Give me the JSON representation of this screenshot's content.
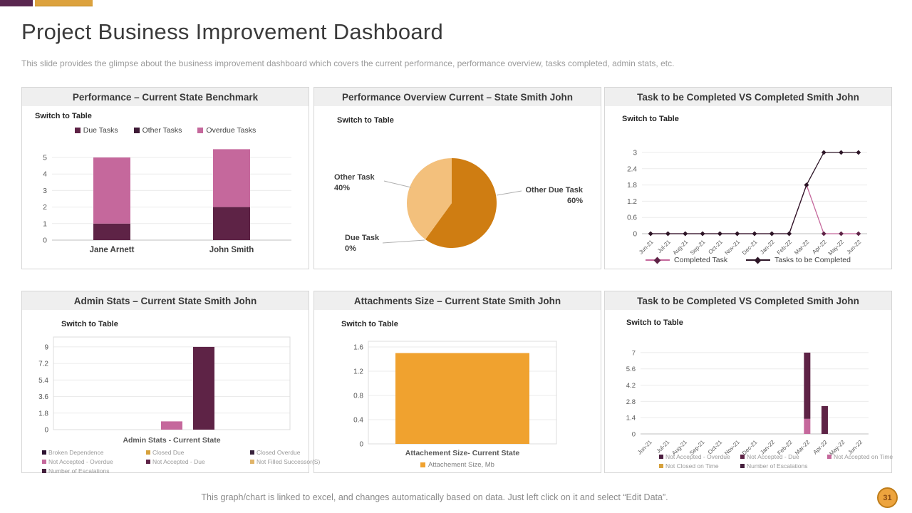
{
  "slide": {
    "title": "Project Business Improvement Dashboard",
    "subtitle": "This slide provides the glimpse about the business improvement dashboard which covers the current performance, performance overview, tasks completed, admin stats, etc.",
    "footer": "This graph/chart is linked to excel, and changes automatically based on data. Just left click on it and select “Edit Data”.",
    "page_number": "31",
    "accent_purple": "#5a2750",
    "accent_orange": "#dca23e"
  },
  "panels": [
    {
      "title": "Performance – Current State Benchmark",
      "switch_label": "Switch to Table"
    },
    {
      "title": "Performance Overview Current – State Smith John",
      "switch_label": "Switch to Table"
    },
    {
      "title": "Task to be Completed VS Completed Smith John",
      "switch_label": "Switch to Table"
    },
    {
      "title": "Admin Stats – Current State Smith John",
      "switch_label": "Switch to Table"
    },
    {
      "title": "Attachments Size – Current State Smith John",
      "switch_label": "Switch to Table"
    },
    {
      "title": "Task to be Completed VS Completed Smith John",
      "switch_label": "Switch to Table"
    }
  ],
  "chart_data": [
    {
      "type": "bar",
      "stacked": true,
      "title": "Performance – Current State Benchmark",
      "categories": [
        "Jane Arnett",
        "John Smith"
      ],
      "yticks": [
        0,
        1,
        2,
        3,
        4,
        5
      ],
      "ylim": [
        0,
        5.5
      ],
      "legend_position": "top",
      "series": [
        {
          "name": "Due Tasks",
          "color": "#5e2346",
          "values": [
            1,
            2
          ]
        },
        {
          "name": "Other Tasks",
          "color": "#3e1b36",
          "values": [
            0,
            0
          ]
        },
        {
          "name": "Overdue Tasks",
          "color": "#c5689c",
          "values": [
            4,
            3.5
          ]
        }
      ]
    },
    {
      "type": "pie",
      "title": "Performance Overview Current – State Smith John",
      "slices": [
        {
          "label": "Other Due Task",
          "pct": 60,
          "color": "#cf7d12"
        },
        {
          "label": "Due Task",
          "pct": 0,
          "color": "#e09c3f"
        },
        {
          "label": "Other Task",
          "pct": 40,
          "color": "#f3c07c"
        }
      ]
    },
    {
      "type": "line",
      "title": "Task to be Completed VS Completed Smith John",
      "categories": [
        "Jun-21",
        "Jul-21",
        "Aug-21",
        "Sep-21",
        "Oct-21",
        "Nov-21",
        "Dec-21",
        "Jan-22",
        "Feb-22",
        "Mar-22",
        "Apr-22",
        "May-22",
        "Jun-22"
      ],
      "yticks": [
        0,
        0.6,
        1.2,
        1.8,
        2.4,
        3
      ],
      "ylim": [
        0,
        3
      ],
      "legend_position": "bottom",
      "series": [
        {
          "name": "Completed Task",
          "color": "#c5689c",
          "marker": "#5e2346",
          "values": [
            0,
            0,
            0,
            0,
            0,
            0,
            0,
            0,
            0,
            1.8,
            0,
            0,
            0
          ]
        },
        {
          "name": "Tasks to be Completed",
          "color": "#2d1627",
          "marker": "#2d1627",
          "values": [
            0,
            0,
            0,
            0,
            0,
            0,
            0,
            0,
            0,
            1.8,
            3,
            3,
            3
          ]
        }
      ]
    },
    {
      "type": "bar",
      "stacked": false,
      "title": "Admin Stats – Current State Smith John",
      "categories": [
        "Admin Stats - Current State"
      ],
      "xlabel": "Admin Stats - Current State",
      "yticks": [
        0,
        1.8,
        3.6,
        5.4,
        7.2,
        9
      ],
      "ylim": [
        0,
        9
      ],
      "legend_position": "bottom",
      "series": [
        {
          "name": "Broken Dependence",
          "color": "#2c1331",
          "values": [
            0
          ]
        },
        {
          "name": "Closed Due",
          "color": "#d6a13c",
          "values": [
            0
          ]
        },
        {
          "name": "Closed Overdue",
          "color": "#38223c",
          "values": [
            0
          ]
        },
        {
          "name": "Not Accepted - Overdue",
          "color": "#c5689c",
          "values": [
            0.9
          ]
        },
        {
          "name": "Not Accepted - Due",
          "color": "#5e2346",
          "values": [
            9
          ]
        },
        {
          "name": "Not Filled Successor(S)",
          "color": "#e0b469",
          "values": [
            0
          ]
        },
        {
          "name": "Number of Escalations",
          "color": "#45203d",
          "values": [
            0
          ]
        }
      ]
    },
    {
      "type": "bar",
      "stacked": false,
      "title": "Attachments Size – Current State Smith John",
      "categories": [
        "Attachement Size- Current State"
      ],
      "xlabel": "Attachement Size- Current State",
      "yticks": [
        0,
        0.4,
        0.8,
        1.2,
        1.6
      ],
      "ylim": [
        0,
        1.6
      ],
      "legend_position": "bottom",
      "series": [
        {
          "name": "Attachement Size, Mb",
          "color": "#f0a22f",
          "values": [
            1.5
          ]
        }
      ]
    },
    {
      "type": "bar",
      "stacked": true,
      "title": "Task to be Completed VS Completed Smith John",
      "categories": [
        "Jun-21",
        "Jul-21",
        "Aug-21",
        "Sep-21",
        "Oct-21",
        "Nov-21",
        "Dec-21",
        "Jan-22",
        "Feb-22",
        "Mar-22",
        "Apr-22",
        "May-22",
        "Jun-22"
      ],
      "yticks": [
        0,
        1.4,
        2.8,
        4.2,
        5.6,
        7
      ],
      "ylim": [
        0,
        7
      ],
      "legend_position": "bottom",
      "series": [
        {
          "name": "Not Accepted on Time",
          "color": "#c5689c",
          "values": [
            0,
            0,
            0,
            0,
            0,
            0,
            0,
            0,
            0,
            1.3,
            0,
            0,
            0
          ]
        },
        {
          "name": "Not Accepted - Overdue",
          "color": "#5e2346",
          "values": [
            0,
            0,
            0,
            0,
            0,
            0,
            0,
            0,
            0,
            5.7,
            0,
            0,
            0
          ]
        },
        {
          "name": "Not Accepted - Due",
          "color": "#5e2346",
          "values": [
            0,
            0,
            0,
            0,
            0,
            0,
            0,
            0,
            0,
            0,
            2.4,
            0,
            0
          ]
        },
        {
          "name": "Not Closed on Time",
          "color": "#d6a13c",
          "values": [
            0,
            0,
            0,
            0,
            0,
            0,
            0,
            0,
            0,
            0,
            0,
            0,
            0
          ]
        },
        {
          "name": "Number of Escalations",
          "color": "#45203d",
          "values": [
            0,
            0,
            0,
            0,
            0,
            0,
            0,
            0,
            0,
            0,
            0,
            0,
            0
          ]
        }
      ],
      "legend": [
        {
          "label": "Not Accepted - Overdue",
          "color": "#4c1e40"
        },
        {
          "label": "Not Accepted - Due",
          "color": "#5e2346"
        },
        {
          "label": "Not Accepted on Time",
          "color": "#c5689c"
        },
        {
          "label": "Not Closed on Time",
          "color": "#d6a13c"
        },
        {
          "label": "Number of Escalations",
          "color": "#45203d"
        }
      ]
    }
  ]
}
